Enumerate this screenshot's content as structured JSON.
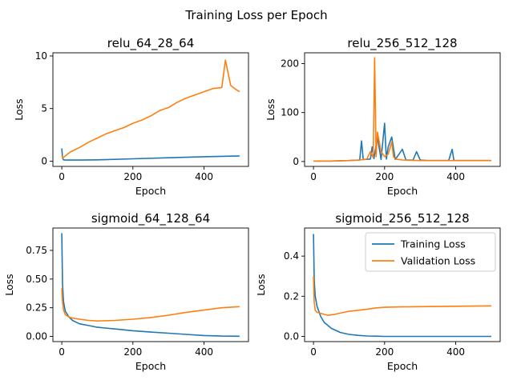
{
  "suptitle": "Training Loss per Epoch",
  "colors": {
    "train": "#1f77b4",
    "val": "#ff7f0e"
  },
  "chart_data": [
    {
      "type": "line",
      "title": "relu_64_28_64",
      "xlabel": "Epoch",
      "ylabel": "Loss",
      "xlim": [
        -25,
        525
      ],
      "ylim": [
        -0.5,
        10.3
      ],
      "xticks": [
        0,
        200,
        400
      ],
      "yticks": [
        0,
        5,
        10
      ],
      "series": [
        {
          "name": "Training Loss",
          "key": "train",
          "x": [
            0,
            2,
            5,
            10,
            50,
            100,
            200,
            300,
            400,
            500
          ],
          "y": [
            1.2,
            0.3,
            0.12,
            0.1,
            0.1,
            0.12,
            0.22,
            0.32,
            0.42,
            0.5
          ]
        },
        {
          "name": "Validation Loss",
          "key": "val",
          "x": [
            0,
            3,
            10,
            25,
            50,
            75,
            100,
            125,
            150,
            175,
            200,
            225,
            250,
            275,
            300,
            325,
            350,
            375,
            400,
            425,
            450,
            460,
            475,
            490,
            500
          ],
          "y": [
            0.5,
            0.3,
            0.5,
            0.9,
            1.3,
            1.8,
            2.2,
            2.6,
            2.9,
            3.2,
            3.6,
            3.9,
            4.3,
            4.8,
            5.1,
            5.6,
            6.0,
            6.3,
            6.6,
            6.9,
            7.0,
            9.6,
            7.2,
            6.8,
            6.6
          ]
        }
      ]
    },
    {
      "type": "line",
      "title": "relu_256_512_128",
      "xlabel": "Epoch",
      "ylabel": "Loss",
      "xlim": [
        -25,
        525
      ],
      "ylim": [
        -10,
        222
      ],
      "xticks": [
        0,
        200,
        400
      ],
      "yticks": [
        0,
        100,
        200
      ],
      "series": [
        {
          "name": "Training Loss",
          "key": "train",
          "x": [
            0,
            50,
            100,
            130,
            135,
            140,
            160,
            165,
            170,
            180,
            190,
            200,
            205,
            210,
            220,
            230,
            250,
            260,
            280,
            290,
            300,
            320,
            340,
            360,
            380,
            390,
            395,
            400,
            450,
            500
          ],
          "y": [
            1,
            1,
            2,
            3,
            42,
            4,
            5,
            30,
            6,
            50,
            4,
            78,
            5,
            30,
            50,
            4,
            25,
            3,
            3,
            20,
            3,
            2,
            2,
            2,
            2,
            25,
            2,
            2,
            2,
            2
          ]
        },
        {
          "name": "Validation Loss",
          "key": "val",
          "x": [
            0,
            50,
            100,
            130,
            150,
            160,
            168,
            172,
            176,
            180,
            190,
            200,
            210,
            220,
            225,
            230,
            250,
            300,
            400,
            500
          ],
          "y": [
            1,
            1,
            2,
            3,
            5,
            20,
            8,
            212,
            10,
            60,
            20,
            10,
            15,
            40,
            10,
            5,
            3,
            2,
            2,
            2
          ]
        }
      ]
    },
    {
      "type": "line",
      "title": "sigmoid_64_128_64",
      "xlabel": "Epoch",
      "ylabel": "Loss",
      "xlim": [
        -25,
        525
      ],
      "ylim": [
        -0.045,
        0.945
      ],
      "xticks": [
        0,
        200,
        400
      ],
      "yticks": [
        0.0,
        0.25,
        0.5,
        0.75
      ],
      "series": [
        {
          "name": "Training Loss",
          "key": "train",
          "x": [
            0,
            2,
            5,
            10,
            20,
            30,
            50,
            75,
            100,
            150,
            200,
            250,
            300,
            350,
            400,
            450,
            500
          ],
          "y": [
            0.9,
            0.45,
            0.3,
            0.22,
            0.17,
            0.14,
            0.11,
            0.095,
            0.08,
            0.065,
            0.05,
            0.038,
            0.028,
            0.018,
            0.008,
            0.003,
            0.002
          ]
        },
        {
          "name": "Validation Loss",
          "key": "val",
          "x": [
            0,
            2,
            5,
            10,
            20,
            30,
            50,
            75,
            100,
            150,
            200,
            250,
            300,
            350,
            400,
            450,
            500
          ],
          "y": [
            0.42,
            0.3,
            0.23,
            0.19,
            0.17,
            0.16,
            0.15,
            0.14,
            0.135,
            0.14,
            0.15,
            0.165,
            0.185,
            0.21,
            0.23,
            0.25,
            0.26
          ]
        }
      ]
    },
    {
      "type": "line",
      "title": "sigmoid_256_512_128",
      "xlabel": "Epoch",
      "ylabel": "Loss",
      "xlim": [
        -25,
        525
      ],
      "ylim": [
        -0.026,
        0.54
      ],
      "xticks": [
        0,
        200,
        400
      ],
      "yticks": [
        0.0,
        0.2,
        0.4
      ],
      "legend": {
        "placement": "upper-right",
        "entries": [
          "Training Loss",
          "Validation Loss"
        ]
      },
      "series": [
        {
          "name": "Training Loss",
          "key": "train",
          "x": [
            0,
            2,
            5,
            10,
            20,
            30,
            50,
            75,
            100,
            125,
            150,
            175,
            200,
            300,
            400,
            500
          ],
          "y": [
            0.51,
            0.28,
            0.2,
            0.15,
            0.1,
            0.07,
            0.04,
            0.02,
            0.01,
            0.005,
            0.002,
            0.001,
            0.0,
            0.0,
            0.0,
            0.0
          ]
        },
        {
          "name": "Validation Loss",
          "key": "val",
          "x": [
            0,
            2,
            5,
            10,
            20,
            40,
            60,
            80,
            100,
            125,
            150,
            175,
            200,
            250,
            300,
            350,
            400,
            450,
            500
          ],
          "y": [
            0.3,
            0.17,
            0.13,
            0.12,
            0.115,
            0.105,
            0.11,
            0.118,
            0.125,
            0.13,
            0.135,
            0.142,
            0.145,
            0.147,
            0.148,
            0.149,
            0.15,
            0.151,
            0.152
          ]
        }
      ]
    }
  ]
}
